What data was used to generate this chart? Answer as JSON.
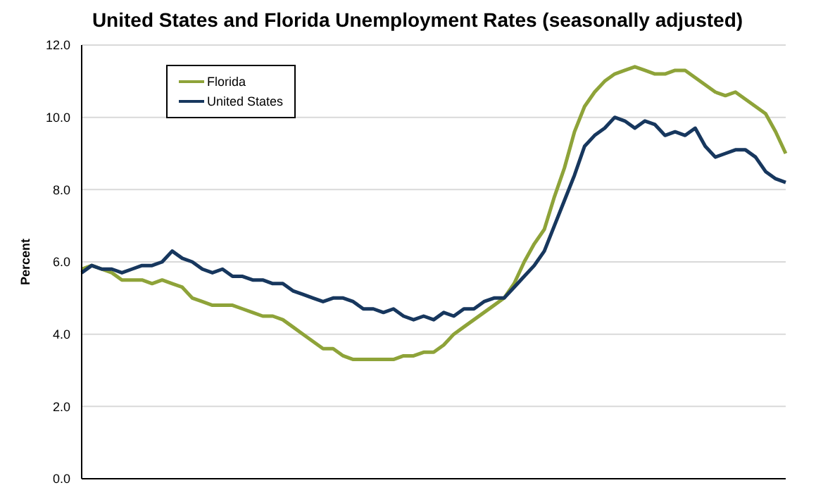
{
  "chart_data": {
    "type": "line",
    "title": "United States and Florida Unemployment Rates (seasonally adjusted)",
    "ylabel": "Percent",
    "categories": [
      null,
      null,
      null,
      null,
      null,
      null,
      null,
      null,
      null,
      null,
      null,
      null,
      null,
      null,
      null,
      null,
      null,
      null,
      null,
      null,
      null,
      null,
      null,
      null,
      null,
      null,
      null,
      null,
      null,
      null,
      null,
      null,
      null,
      null,
      null,
      null,
      null,
      null,
      null,
      null,
      null,
      null,
      null,
      null,
      null,
      null,
      null,
      null,
      null,
      null,
      null,
      null,
      null,
      null,
      null,
      null,
      null,
      null,
      null,
      null,
      null,
      null,
      null,
      null,
      null,
      null,
      null,
      null,
      null,
      null,
      null
    ],
    "series": [
      {
        "name": "Florida",
        "color": "#8ea339",
        "values": [
          5.8,
          5.9,
          5.8,
          5.7,
          5.5,
          5.5,
          5.5,
          5.4,
          5.5,
          5.4,
          5.3,
          5.0,
          4.9,
          4.8,
          4.8,
          4.8,
          4.7,
          4.6,
          4.5,
          4.5,
          4.4,
          4.2,
          4.0,
          3.8,
          3.6,
          3.6,
          3.4,
          3.3,
          3.3,
          3.3,
          3.3,
          3.3,
          3.4,
          3.4,
          3.5,
          3.5,
          3.7,
          4.0,
          4.2,
          4.4,
          4.6,
          4.8,
          5.0,
          5.4,
          6.0,
          6.5,
          6.9,
          7.8,
          8.6,
          9.6,
          10.3,
          10.7,
          11.0,
          11.2,
          11.3,
          11.4,
          11.3,
          11.2,
          11.2,
          11.3,
          11.3,
          11.1,
          10.9,
          10.7,
          10.6,
          10.7,
          10.5,
          10.3,
          10.1,
          9.6,
          9.0
        ]
      },
      {
        "name": "United States",
        "color": "#17375e",
        "values": [
          5.7,
          5.9,
          5.8,
          5.8,
          5.7,
          5.8,
          5.9,
          5.9,
          6.0,
          6.3,
          6.1,
          6.0,
          5.8,
          5.7,
          5.8,
          5.6,
          5.6,
          5.5,
          5.5,
          5.4,
          5.4,
          5.2,
          5.1,
          5.0,
          4.9,
          5.0,
          5.0,
          4.9,
          4.7,
          4.7,
          4.6,
          4.7,
          4.5,
          4.4,
          4.5,
          4.4,
          4.6,
          4.5,
          4.7,
          4.7,
          4.9,
          5.0,
          5.0,
          5.3,
          5.6,
          5.9,
          6.3,
          7.0,
          7.7,
          8.4,
          9.2,
          9.5,
          9.7,
          10.0,
          9.9,
          9.7,
          9.9,
          9.8,
          9.5,
          9.6,
          9.5,
          9.7,
          9.2,
          8.9,
          9.0,
          9.1,
          9.1,
          8.9,
          8.5,
          8.3,
          8.2
        ]
      }
    ],
    "ylim": [
      0,
      12
    ],
    "yticks": [
      {
        "value": 0,
        "label": "0.0"
      },
      {
        "value": 2,
        "label": "2.0"
      },
      {
        "value": 4,
        "label": "4.0"
      },
      {
        "value": 6,
        "label": "6.0"
      },
      {
        "value": 8,
        "label": "8.0"
      },
      {
        "value": 10,
        "label": "10.0"
      },
      {
        "value": 12,
        "label": "12.0"
      }
    ],
    "tick_labels": "y",
    "grid": "y",
    "legend": "top left",
    "marker": "none",
    "line_style": "solid"
  }
}
